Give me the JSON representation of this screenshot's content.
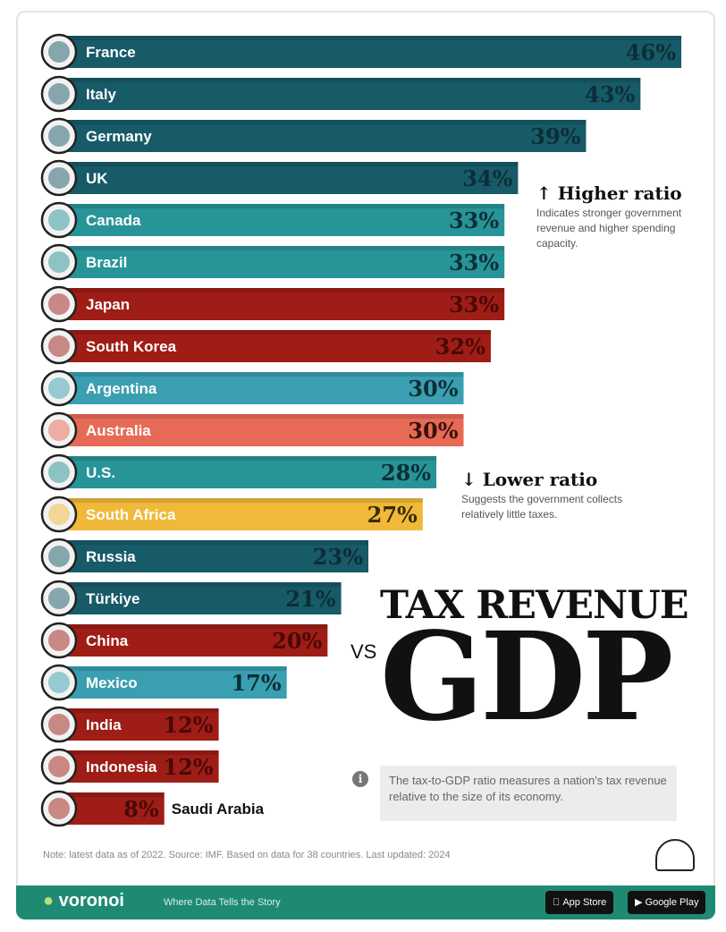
{
  "chart_data": {
    "type": "bar",
    "orientation": "horizontal",
    "title": "TAX REVENUE",
    "title_connector": "VS",
    "title_big": "GDP",
    "xlim": [
      0,
      50
    ],
    "categories": [
      "France",
      "Italy",
      "Germany",
      "UK",
      "Canada",
      "Brazil",
      "Japan",
      "South Korea",
      "Argentina",
      "Australia",
      "U.S.",
      "South Africa",
      "Russia",
      "Türkiye",
      "China",
      "Mexico",
      "India",
      "Indonesia",
      "Saudi Arabia"
    ],
    "values": [
      46,
      43,
      39,
      34,
      33,
      33,
      33,
      32,
      30,
      30,
      28,
      27,
      23,
      21,
      20,
      17,
      12,
      12,
      8
    ],
    "value_labels": [
      "46%",
      "43%",
      "39%",
      "34%",
      "33%",
      "33%",
      "33%",
      "32%",
      "30%",
      "30%",
      "28%",
      "27%",
      "23%",
      "21%",
      "20%",
      "17%",
      "12%",
      "12%",
      "8%"
    ],
    "bar_colors": [
      "#175a68",
      "#175a68",
      "#175a68",
      "#175a68",
      "#279498",
      "#279498",
      "#9e1d16",
      "#9e1d16",
      "#3a9fb0",
      "#e66a56",
      "#279498",
      "#f0b93a",
      "#175a68",
      "#175a68",
      "#9e1d16",
      "#3a9fb0",
      "#9e1d16",
      "#9e1d16",
      "#9e1d16"
    ],
    "value_colors": [
      "#0c2e36",
      "#0c2e36",
      "#0c2e36",
      "#0c2e36",
      "#0c2e36",
      "#0c2e36",
      "#4a0806",
      "#4a0806",
      "#0c2e36",
      "#3a1008",
      "#0c2e36",
      "#3a2a00",
      "#0c2e36",
      "#0c2e36",
      "#4a0806",
      "#0c2e36",
      "#4a0806",
      "#4a0806",
      "#4a0806"
    ]
  },
  "notes": {
    "higher": {
      "title": "↑ Higher ratio",
      "body": "Indicates stronger government revenue and higher spending capacity."
    },
    "lower": {
      "title": "↓ Lower ratio",
      "body": "Suggests the government collects relatively little taxes."
    }
  },
  "info": {
    "icon": "info-icon",
    "text": "The tax-to-GDP ratio measures a nation's tax revenue relative to the size of its economy."
  },
  "source": "Note: latest data as of 2022. Source: IMF. Based on data for 38 countries. Last updated: 2024",
  "footer": {
    "brand": "voronoi",
    "tagline": "Where Data Tells the Story",
    "app_store": "App Store",
    "google_play": "Google Play"
  },
  "colors": {
    "footer": "#1e8a73",
    "accent": "#1e8a73"
  }
}
